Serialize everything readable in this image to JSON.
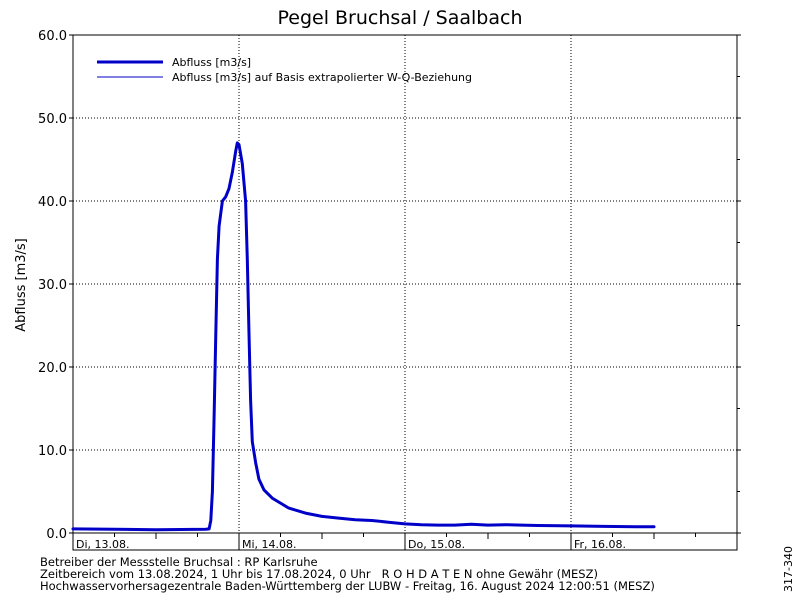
{
  "chart_data": {
    "type": "line",
    "title": "Pegel Bruchsal / Saalbach",
    "ylabel": "Abfluss [m3/s]",
    "xlabel": "",
    "ylim": [
      0,
      60
    ],
    "y_ticks": [
      "0.0",
      "10.0",
      "20.0",
      "30.0",
      "40.0",
      "50.0",
      "60.0"
    ],
    "x_range_days": [
      0,
      4
    ],
    "x_ticks": [
      {
        "label": "Di, 13.08.",
        "day": 0
      },
      {
        "label": "Mi, 14.08.",
        "day": 1
      },
      {
        "label": "Do, 15.08.",
        "day": 2
      },
      {
        "label": "Fr, 16.08.",
        "day": 3
      }
    ],
    "grid": true,
    "legend_position": "top-left",
    "series": [
      {
        "name": "Abfluss [m3/s]",
        "color": "#0000c8",
        "style": "thick",
        "points": [
          [
            0.0,
            0.5
          ],
          [
            0.5,
            0.4
          ],
          [
            0.8,
            0.45
          ],
          [
            0.82,
            0.5
          ],
          [
            0.83,
            1.5
          ],
          [
            0.84,
            5
          ],
          [
            0.85,
            14
          ],
          [
            0.86,
            24
          ],
          [
            0.87,
            33
          ],
          [
            0.88,
            37
          ],
          [
            0.9,
            40
          ],
          [
            0.92,
            40.5
          ],
          [
            0.94,
            41.5
          ],
          [
            0.96,
            43.5
          ],
          [
            0.98,
            46
          ],
          [
            0.99,
            47
          ],
          [
            1.0,
            46.8
          ],
          [
            1.02,
            44.5
          ],
          [
            1.04,
            40
          ],
          [
            1.05,
            33
          ],
          [
            1.06,
            24
          ],
          [
            1.07,
            16
          ],
          [
            1.08,
            11
          ],
          [
            1.1,
            8.5
          ],
          [
            1.12,
            6.5
          ],
          [
            1.15,
            5.2
          ],
          [
            1.2,
            4.2
          ],
          [
            1.25,
            3.6
          ],
          [
            1.3,
            3.0
          ],
          [
            1.4,
            2.4
          ],
          [
            1.5,
            2.0
          ],
          [
            1.6,
            1.8
          ],
          [
            1.7,
            1.6
          ],
          [
            1.8,
            1.5
          ],
          [
            1.9,
            1.3
          ],
          [
            2.0,
            1.1
          ],
          [
            2.1,
            1.0
          ],
          [
            2.2,
            0.95
          ],
          [
            2.3,
            0.95
          ],
          [
            2.4,
            1.05
          ],
          [
            2.5,
            0.95
          ],
          [
            2.6,
            1.0
          ],
          [
            2.7,
            0.95
          ],
          [
            2.8,
            0.9
          ],
          [
            3.0,
            0.85
          ],
          [
            3.2,
            0.8
          ],
          [
            3.4,
            0.75
          ],
          [
            3.5,
            0.75
          ]
        ]
      },
      {
        "name": "Abfluss [m3/s] auf Basis extrapolierter W-Q-Beziehung",
        "color": "#0000c8",
        "style": "thin",
        "points": []
      }
    ]
  },
  "footer": {
    "line1": "Betreiber der Messstelle Bruchsal : RP Karlsruhe",
    "line2": "Zeitbereich vom 13.08.2024, 1 Uhr bis 17.08.2024, 0 Uhr   R O H D A T E N ohne Gewähr (MESZ)",
    "line3": "Hochwasservorhersagezentrale Baden-Württemberg der LUBW - Freitag, 16. August 2024 12:00:51 (MESZ)"
  },
  "side_id": "317-340"
}
